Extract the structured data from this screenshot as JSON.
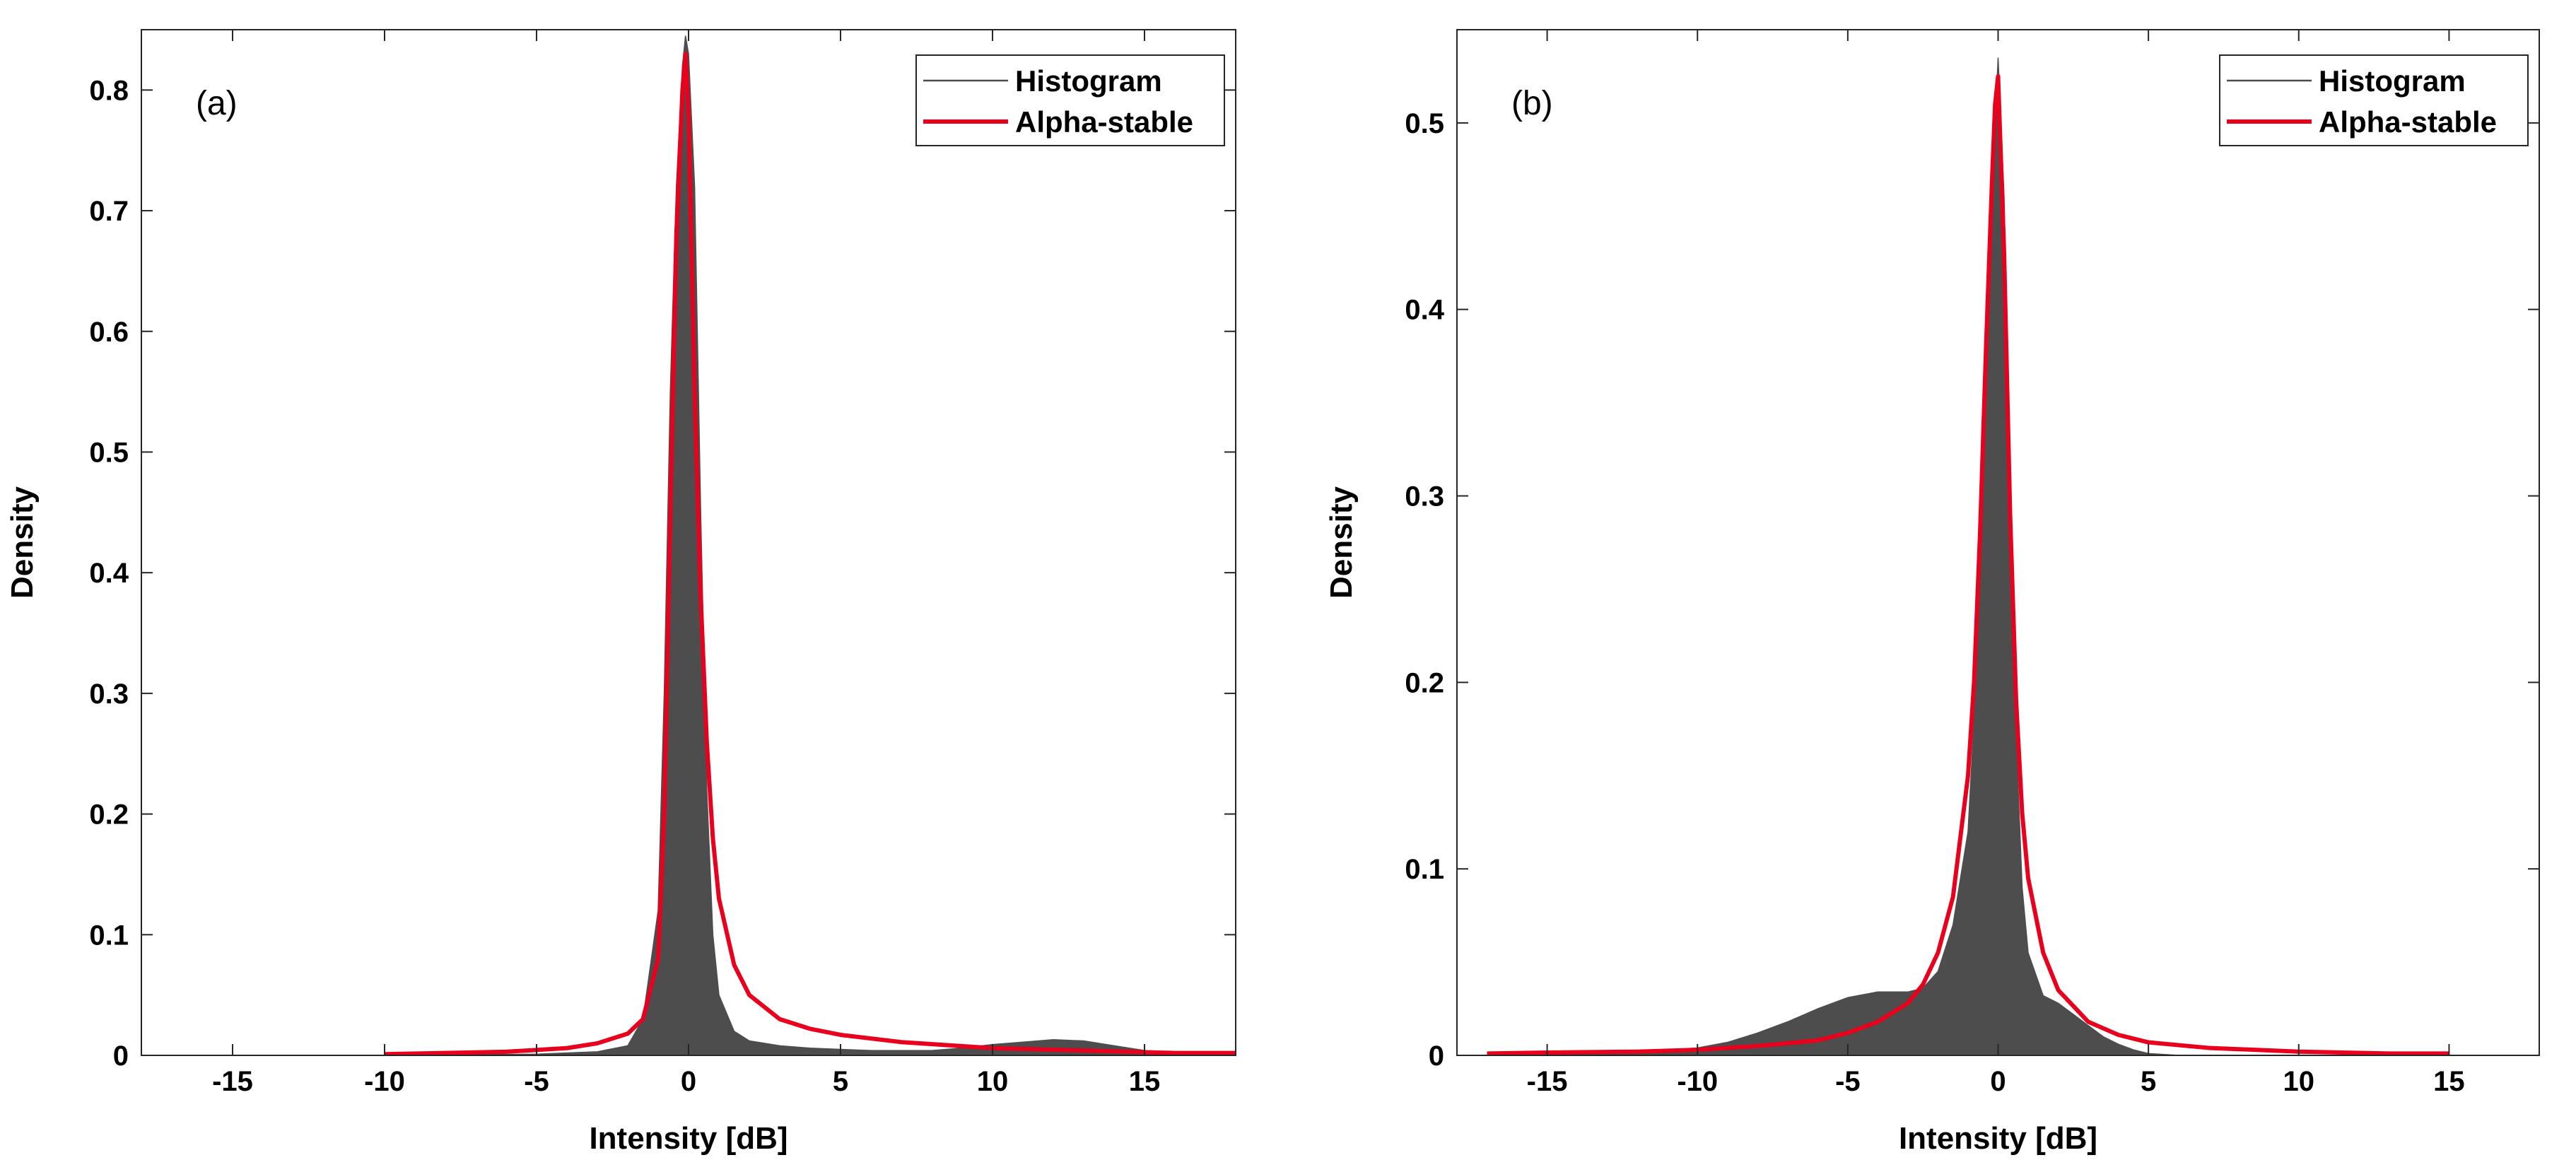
{
  "chart_data": [
    {
      "type": "area",
      "panel_label": "(a)",
      "xlabel": "Intensity [dB]",
      "ylabel": "Density",
      "xlim": [
        -18,
        18
      ],
      "ylim": [
        0,
        0.85
      ],
      "xticks": [
        -15,
        -10,
        -5,
        0,
        5,
        10,
        15
      ],
      "yticks": [
        0,
        0.1,
        0.2,
        0.3,
        0.4,
        0.5,
        0.6,
        0.7,
        0.8
      ],
      "grid": false,
      "legend": {
        "position": "top-right",
        "entries": [
          "Histogram",
          "Alpha-stable"
        ]
      },
      "series": [
        {
          "name": "Histogram",
          "kind": "histogram",
          "color": "#4d4d4d",
          "x": [
            -10,
            -5,
            -3,
            -2,
            -1.5,
            -1,
            -0.8,
            -0.6,
            -0.4,
            -0.2,
            -0.1,
            0,
            0.2,
            0.4,
            0.6,
            0.8,
            1,
            1.5,
            2,
            3,
            4,
            5,
            6,
            8,
            9,
            10,
            11,
            12,
            13,
            14,
            15,
            16,
            17,
            18
          ],
          "values": [
            0,
            0.001,
            0.003,
            0.008,
            0.03,
            0.12,
            0.3,
            0.55,
            0.72,
            0.82,
            0.845,
            0.83,
            0.72,
            0.45,
            0.22,
            0.1,
            0.05,
            0.02,
            0.012,
            0.008,
            0.006,
            0.005,
            0.004,
            0.004,
            0.006,
            0.009,
            0.011,
            0.013,
            0.012,
            0.008,
            0.004,
            0.001,
            0,
            0
          ]
        },
        {
          "name": "Alpha-stable",
          "kind": "line",
          "color": "#e8001c",
          "x": [
            -10,
            -8,
            -6,
            -4,
            -3,
            -2,
            -1.5,
            -1,
            -0.8,
            -0.6,
            -0.4,
            -0.2,
            -0.1,
            0,
            0.2,
            0.4,
            0.6,
            0.8,
            1,
            1.5,
            2,
            3,
            4,
            5,
            7,
            10,
            13,
            16,
            18
          ],
          "values": [
            0.001,
            0.002,
            0.003,
            0.006,
            0.01,
            0.018,
            0.03,
            0.08,
            0.2,
            0.45,
            0.68,
            0.8,
            0.83,
            0.78,
            0.55,
            0.38,
            0.26,
            0.18,
            0.13,
            0.075,
            0.05,
            0.03,
            0.022,
            0.017,
            0.011,
            0.006,
            0.004,
            0.002,
            0.002
          ]
        }
      ]
    },
    {
      "type": "area",
      "panel_label": "(b)",
      "xlabel": "Intensity [dB]",
      "ylabel": "Density",
      "xlim": [
        -18,
        18
      ],
      "ylim": [
        0,
        0.55
      ],
      "xticks": [
        -15,
        -10,
        -5,
        0,
        5,
        10,
        15
      ],
      "yticks": [
        0,
        0.1,
        0.2,
        0.3,
        0.4,
        0.5
      ],
      "grid": false,
      "legend": {
        "position": "top-right",
        "entries": [
          "Histogram",
          "Alpha-stable"
        ]
      },
      "series": [
        {
          "name": "Histogram",
          "kind": "histogram",
          "color": "#4d4d4d",
          "x": [
            -17,
            -15,
            -12,
            -10,
            -9,
            -8,
            -7,
            -6,
            -5,
            -4,
            -3,
            -2.5,
            -2,
            -1.5,
            -1,
            -0.8,
            -0.6,
            -0.4,
            -0.2,
            -0.1,
            0,
            0.2,
            0.4,
            0.6,
            0.8,
            1,
            1.5,
            2,
            2.5,
            3,
            3.5,
            4,
            4.5,
            5,
            6,
            8,
            10,
            15
          ],
          "values": [
            0,
            0.001,
            0.002,
            0.004,
            0.007,
            0.012,
            0.018,
            0.025,
            0.031,
            0.034,
            0.034,
            0.036,
            0.045,
            0.07,
            0.12,
            0.18,
            0.27,
            0.37,
            0.45,
            0.5,
            0.535,
            0.46,
            0.3,
            0.17,
            0.09,
            0.055,
            0.032,
            0.028,
            0.022,
            0.016,
            0.01,
            0.006,
            0.003,
            0.001,
            0,
            0,
            0,
            0
          ]
        },
        {
          "name": "Alpha-stable",
          "kind": "line",
          "color": "#e8001c",
          "x": [
            -17,
            -15,
            -12,
            -10,
            -8,
            -6,
            -5,
            -4,
            -3,
            -2.5,
            -2,
            -1.5,
            -1,
            -0.8,
            -0.6,
            -0.4,
            -0.2,
            -0.1,
            0,
            0.2,
            0.4,
            0.6,
            0.8,
            1,
            1.5,
            2,
            3,
            4,
            5,
            7,
            10,
            13,
            15
          ],
          "values": [
            0.001,
            0.0015,
            0.002,
            0.003,
            0.005,
            0.008,
            0.012,
            0.018,
            0.028,
            0.038,
            0.055,
            0.085,
            0.15,
            0.2,
            0.28,
            0.38,
            0.47,
            0.51,
            0.525,
            0.43,
            0.29,
            0.19,
            0.13,
            0.095,
            0.055,
            0.035,
            0.018,
            0.011,
            0.007,
            0.004,
            0.002,
            0.001,
            0.001
          ]
        }
      ]
    }
  ]
}
